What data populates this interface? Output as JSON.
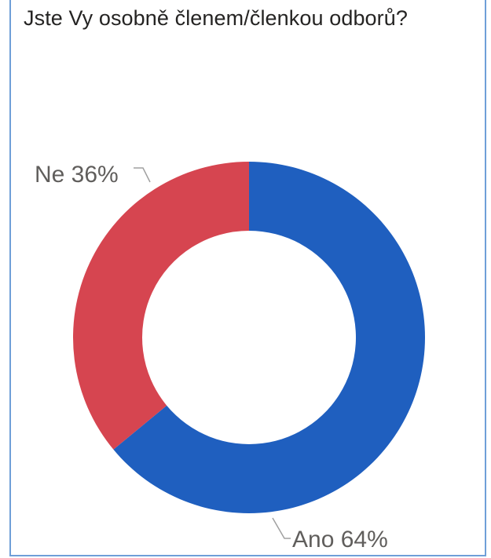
{
  "chart_data": {
    "type": "pie",
    "title": "Jste Vy osobně členem/členkou odborů?",
    "donut": true,
    "categories": [
      "Ano",
      "Ne"
    ],
    "values": [
      64,
      36
    ],
    "labels": [
      "Ano 64%",
      "Ne 36%"
    ],
    "colors": [
      "#1f5fbf",
      "#d64550"
    ],
    "start": "12 o'clock",
    "direction": "clockwise",
    "legend": "none"
  }
}
